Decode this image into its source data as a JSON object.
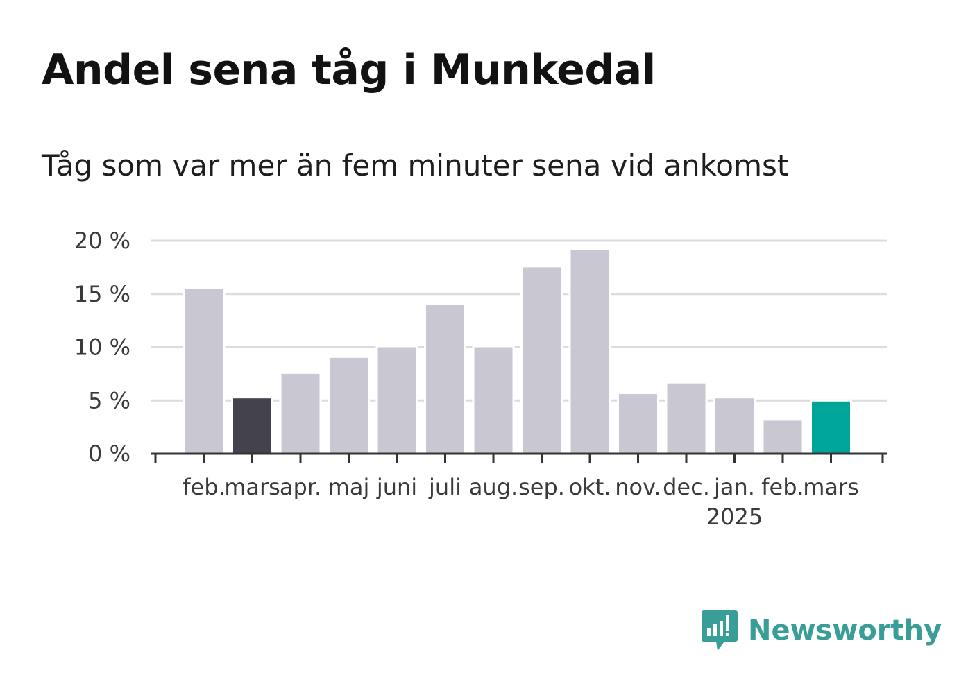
{
  "title": "Andel sena tåg i Munkedal",
  "subtitle": "Tåg som var mer än fem minuter sena vid ankomst",
  "brand": {
    "name": "Newsworthy",
    "color": "#3a9e98",
    "icon": "newsworthy-logo-icon"
  },
  "colors": {
    "default_bar": "#c9c8d2",
    "highlight_previous": "#43424d",
    "highlight_current": "#00a59a",
    "grid": "#dcdcdc",
    "axis": "#333333"
  },
  "chart_data": {
    "type": "bar",
    "categories": [
      "feb.",
      "mars",
      "apr.",
      "maj",
      "juni",
      "juli",
      "aug.",
      "sep.",
      "okt.",
      "nov.",
      "dec.",
      "jan.",
      "feb.",
      "mars"
    ],
    "year_label": {
      "text": "2025",
      "under_category_index": 11
    },
    "values": [
      15.5,
      5.2,
      7.5,
      9.0,
      10.0,
      14.0,
      10.0,
      17.5,
      19.1,
      5.6,
      6.6,
      5.2,
      3.1,
      4.9
    ],
    "highlight": {
      "1": "highlight_previous",
      "13": "highlight_current"
    },
    "ylim": [
      0,
      20
    ],
    "yticks": [
      0,
      5,
      10,
      15,
      20
    ],
    "ytick_labels": [
      "0 %",
      "5 %",
      "10 %",
      "15 %",
      "20 %"
    ],
    "grid": true,
    "xlabel": "",
    "ylabel": ""
  }
}
